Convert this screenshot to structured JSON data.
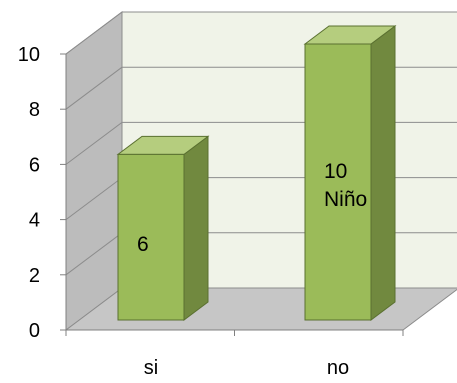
{
  "chart_data": {
    "type": "bar",
    "style": "3d-column",
    "categories": [
      "si",
      "no"
    ],
    "values": [
      6,
      10
    ],
    "series": [
      {
        "values": [
          6,
          10
        ]
      }
    ],
    "data_labels": [
      {
        "value": "6"
      },
      {
        "value": "10",
        "series_label": "Niño"
      }
    ],
    "title": "",
    "xlabel": "",
    "ylabel": "",
    "ylim": [
      0,
      10
    ],
    "y_ticks": [
      "0",
      "2",
      "4",
      "6",
      "8",
      "10"
    ],
    "grid": true,
    "legend": false
  },
  "colors": {
    "bar_front": "#9bbb59",
    "bar_side": "#71893f",
    "bar_top": "#b5cd7e",
    "bar_stroke": "#5a7030",
    "back_wall": "#f0f3e8",
    "side_wall": "#bcbcbc",
    "floor": "#c6c6c6",
    "gridline": "#8c8c8c"
  }
}
